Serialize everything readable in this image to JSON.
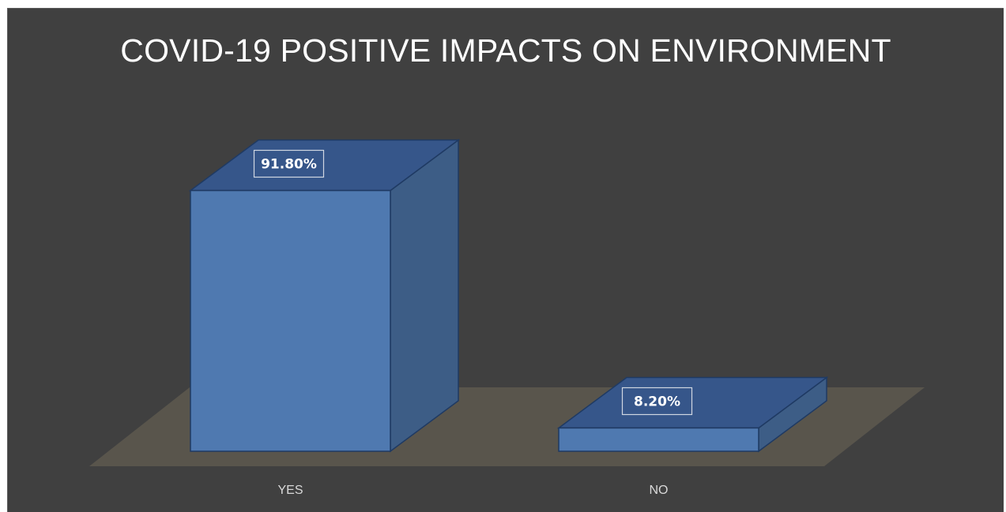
{
  "chart_data": {
    "type": "bar",
    "title": "COVID-19 POSITIVE IMPACTS ON ENVIRONMENT",
    "categories": [
      "YES",
      "NO"
    ],
    "values": [
      91.8,
      8.2
    ],
    "data_labels": [
      "91.80%",
      "8.20%"
    ],
    "xlabel": "",
    "ylabel": "",
    "ylim": [
      0,
      100
    ],
    "grid": false,
    "legend": "none",
    "style": "3d-column",
    "colors": {
      "background": "#404040",
      "floor": "#59554c",
      "bar_front": "#4f79b0",
      "bar_side": "#3d5d86",
      "bar_top": "#36568a",
      "bar_edge": "#1f3a63",
      "title_text": "#ffffff",
      "tick_text": "#d9d9d9"
    }
  }
}
